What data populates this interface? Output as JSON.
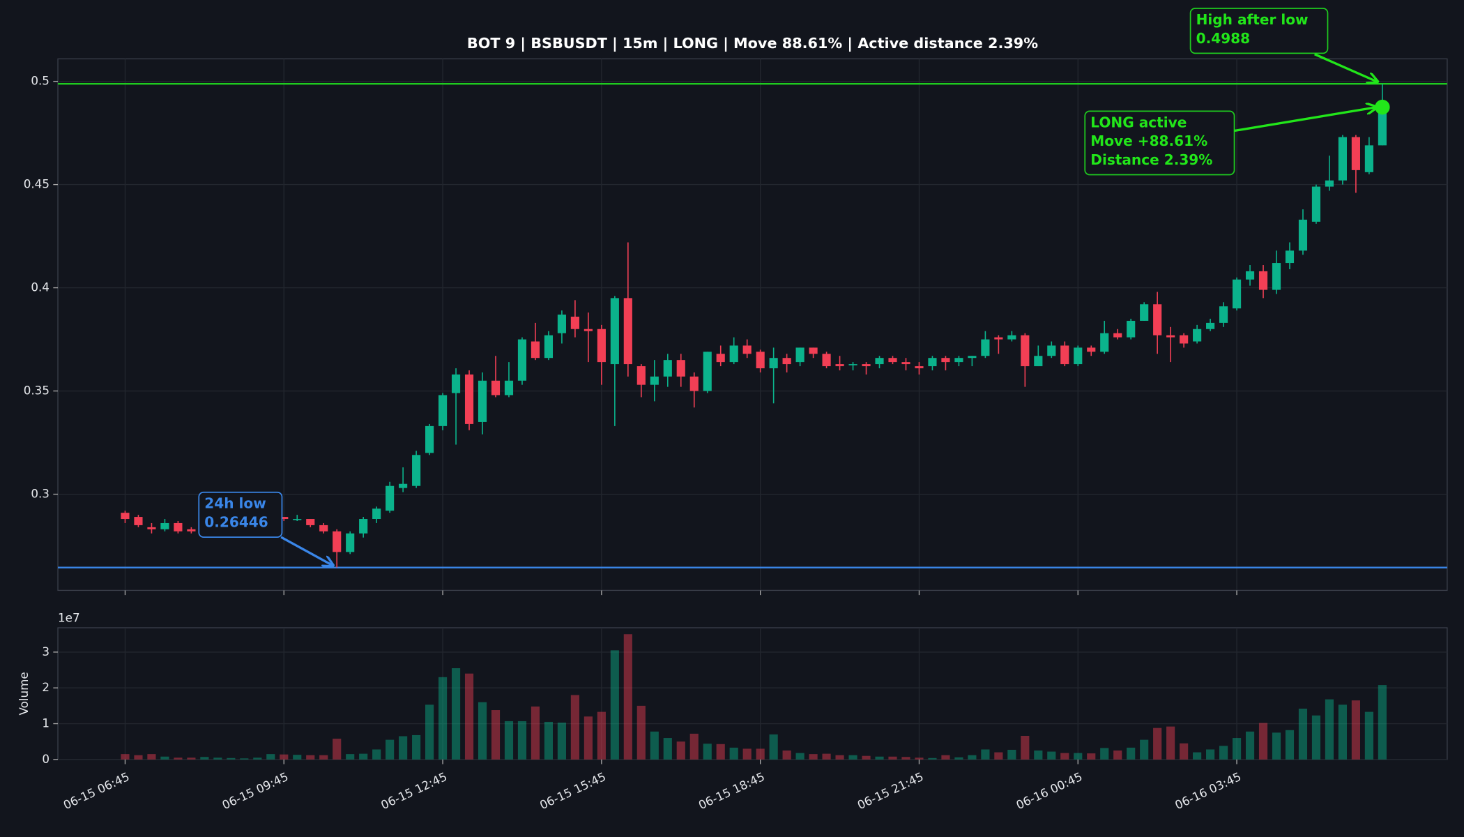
{
  "chart_data": {
    "type": "candlestick",
    "title": "BOT 9 | BSBUSDT | 15m | LONG | Move 88.61% | Active distance 2.39%",
    "categories": [
      "06-15 06:45",
      null,
      null,
      null,
      null,
      null,
      null,
      null,
      null,
      null,
      null,
      null,
      "06-15 09:45",
      null,
      null,
      null,
      null,
      null,
      null,
      null,
      null,
      null,
      null,
      null,
      "06-15 12:45",
      null,
      null,
      null,
      null,
      null,
      null,
      null,
      null,
      null,
      null,
      null,
      "06-15 15:45",
      null,
      null,
      null,
      null,
      null,
      null,
      null,
      null,
      null,
      null,
      null,
      "06-15 18:45",
      null,
      null,
      null,
      null,
      null,
      null,
      null,
      null,
      null,
      null,
      null,
      "06-15 21:45",
      null,
      null,
      null,
      null,
      null,
      null,
      null,
      null,
      null,
      null,
      null,
      "06-16 00:45",
      null,
      null,
      null,
      null,
      null,
      null,
      null,
      null,
      null,
      null,
      null,
      "06-16 03:45",
      null,
      null,
      null,
      null,
      null,
      null,
      null,
      null,
      null,
      null,
      null
    ],
    "open": [
      0.291,
      0.289,
      0.284,
      0.283,
      0.286,
      0.283,
      0.282,
      0.284,
      0.286,
      0.287,
      0.288,
      0.288,
      0.289,
      0.288,
      0.288,
      0.285,
      0.282,
      0.272,
      0.281,
      0.288,
      0.292,
      0.303,
      0.304,
      0.32,
      0.333,
      0.349,
      0.358,
      0.335,
      0.355,
      0.348,
      0.355,
      0.374,
      0.366,
      0.378,
      0.386,
      0.38,
      0.38,
      0.363,
      0.395,
      0.362,
      0.353,
      0.357,
      0.365,
      0.357,
      0.35,
      0.368,
      0.364,
      0.372,
      0.369,
      0.361,
      0.366,
      0.364,
      0.371,
      0.368,
      0.363,
      0.363,
      0.363,
      0.363,
      0.366,
      0.364,
      0.362,
      0.362,
      0.366,
      0.364,
      0.366,
      0.367,
      0.376,
      0.375,
      0.377,
      0.362,
      0.367,
      0.372,
      0.363,
      0.371,
      0.369,
      0.378,
      0.376,
      0.384,
      0.392,
      0.377,
      0.377,
      0.374,
      0.38,
      0.383,
      0.39,
      0.404,
      0.408,
      0.399,
      0.412,
      0.418,
      0.432,
      0.449,
      0.452,
      0.473,
      0.456,
      0.469
    ],
    "high": [
      0.292,
      0.29,
      0.286,
      0.288,
      0.287,
      0.284,
      0.284,
      0.287,
      0.288,
      0.289,
      0.289,
      0.291,
      0.289,
      0.29,
      0.288,
      0.286,
      0.283,
      0.282,
      0.289,
      0.294,
      0.306,
      0.313,
      0.321,
      0.334,
      0.349,
      0.361,
      0.36,
      0.359,
      0.367,
      0.364,
      0.376,
      0.383,
      0.379,
      0.389,
      0.394,
      0.388,
      0.382,
      0.396,
      0.422,
      0.363,
      0.365,
      0.368,
      0.368,
      0.359,
      0.369,
      0.372,
      0.376,
      0.375,
      0.37,
      0.371,
      0.368,
      0.371,
      0.371,
      0.369,
      0.367,
      0.364,
      0.364,
      0.367,
      0.367,
      0.366,
      0.364,
      0.367,
      0.367,
      0.367,
      0.367,
      0.379,
      0.377,
      0.379,
      0.378,
      0.372,
      0.374,
      0.374,
      0.372,
      0.372,
      0.384,
      0.38,
      0.385,
      0.393,
      0.398,
      0.381,
      0.378,
      0.382,
      0.385,
      0.393,
      0.405,
      0.411,
      0.411,
      0.418,
      0.422,
      0.438,
      0.45,
      0.464,
      0.474,
      0.474,
      0.473,
      0.4988
    ],
    "low": [
      0.286,
      0.284,
      0.281,
      0.282,
      0.281,
      0.281,
      0.281,
      0.283,
      0.285,
      0.286,
      0.287,
      0.287,
      0.287,
      0.287,
      0.284,
      0.281,
      0.26446,
      0.271,
      0.279,
      0.286,
      0.291,
      0.301,
      0.303,
      0.319,
      0.331,
      0.324,
      0.331,
      0.329,
      0.347,
      0.347,
      0.353,
      0.365,
      0.365,
      0.373,
      0.376,
      0.364,
      0.353,
      0.333,
      0.357,
      0.347,
      0.345,
      0.352,
      0.352,
      0.342,
      0.349,
      0.362,
      0.363,
      0.366,
      0.359,
      0.344,
      0.359,
      0.362,
      0.366,
      0.361,
      0.36,
      0.36,
      0.358,
      0.361,
      0.363,
      0.36,
      0.358,
      0.36,
      0.36,
      0.362,
      0.362,
      0.366,
      0.368,
      0.374,
      0.352,
      0.362,
      0.366,
      0.362,
      0.362,
      0.367,
      0.368,
      0.375,
      0.375,
      0.384,
      0.368,
      0.364,
      0.371,
      0.373,
      0.379,
      0.381,
      0.389,
      0.401,
      0.395,
      0.397,
      0.409,
      0.416,
      0.431,
      0.447,
      0.45,
      0.446,
      0.455,
      0.469
    ],
    "close": [
      0.288,
      0.285,
      0.283,
      0.286,
      0.282,
      0.282,
      0.283,
      0.286,
      0.287,
      0.288,
      0.288,
      0.289,
      0.288,
      0.288,
      0.285,
      0.282,
      0.272,
      0.281,
      0.288,
      0.293,
      0.304,
      0.305,
      0.319,
      0.333,
      0.348,
      0.358,
      0.334,
      0.355,
      0.348,
      0.355,
      0.375,
      0.366,
      0.377,
      0.387,
      0.38,
      0.379,
      0.364,
      0.395,
      0.363,
      0.353,
      0.357,
      0.365,
      0.357,
      0.35,
      0.369,
      0.364,
      0.372,
      0.368,
      0.361,
      0.366,
      0.363,
      0.371,
      0.368,
      0.362,
      0.362,
      0.363,
      0.362,
      0.366,
      0.364,
      0.363,
      0.361,
      0.366,
      0.364,
      0.366,
      0.367,
      0.375,
      0.375,
      0.377,
      0.362,
      0.367,
      0.372,
      0.363,
      0.371,
      0.369,
      0.378,
      0.376,
      0.384,
      0.392,
      0.377,
      0.376,
      0.373,
      0.38,
      0.383,
      0.391,
      0.404,
      0.408,
      0.399,
      0.412,
      0.418,
      0.433,
      0.449,
      0.452,
      0.473,
      0.457,
      0.469,
      0.4875
    ],
    "up_color": "#0bb38c",
    "down_color": "#f23f55",
    "ylim": [
      0.2534,
      0.5109
    ],
    "yticks": [
      0.3,
      0.35,
      0.4,
      0.45,
      0.5
    ],
    "grid": true,
    "volume": {
      "type": "bar",
      "ylabel": "Volume",
      "offset_label": "1e7",
      "values": [
        0.15,
        0.12,
        0.15,
        0.08,
        0.05,
        0.05,
        0.07,
        0.05,
        0.04,
        0.03,
        0.05,
        0.15,
        0.14,
        0.13,
        0.12,
        0.12,
        0.58,
        0.15,
        0.16,
        0.28,
        0.55,
        0.65,
        0.68,
        1.53,
        2.3,
        2.55,
        2.4,
        1.6,
        1.38,
        1.07,
        1.07,
        1.48,
        1.05,
        1.03,
        1.8,
        1.2,
        1.33,
        3.05,
        3.5,
        1.5,
        0.78,
        0.6,
        0.5,
        0.72,
        0.44,
        0.43,
        0.33,
        0.3,
        0.3,
        0.7,
        0.25,
        0.18,
        0.15,
        0.16,
        0.12,
        0.12,
        0.1,
        0.08,
        0.08,
        0.07,
        0.05,
        0.04,
        0.12,
        0.06,
        0.12,
        0.28,
        0.2,
        0.27,
        0.66,
        0.25,
        0.22,
        0.18,
        0.18,
        0.17,
        0.32,
        0.25,
        0.33,
        0.55,
        0.88,
        0.92,
        0.45,
        0.2,
        0.28,
        0.38,
        0.6,
        0.78,
        1.02,
        0.75,
        0.82,
        1.42,
        1.23,
        1.68,
        1.53,
        1.65,
        1.33,
        2.08
      ],
      "ylim": [
        0,
        3.68
      ],
      "yticks": [
        0,
        1,
        2,
        3
      ]
    },
    "levels": [
      {
        "name": "High after low",
        "value": 0.4988,
        "color": "#1fcb1f"
      },
      {
        "name": "24h low",
        "value": 0.26446,
        "color": "#3a86e8"
      }
    ],
    "marker": {
      "lines": [
        "LONG active",
        "Move +88.61%",
        "Distance 2.39%"
      ],
      "color": "#22e61a"
    }
  }
}
